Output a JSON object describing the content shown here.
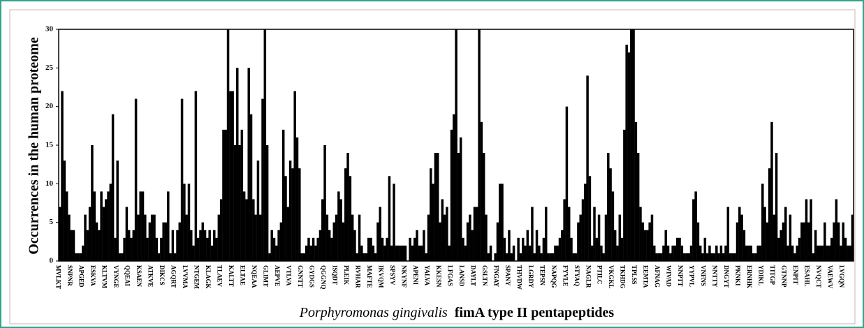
{
  "chart_data": {
    "type": "bar",
    "title": [
      "Porphyromonas gingivalis",
      "fimA type II pentapeptides"
    ],
    "y_label": "Occurrences in the human proteome",
    "color": "#000000",
    "ylim": [
      0,
      30
    ],
    "yticks": [
      0,
      5,
      10,
      15,
      20,
      25,
      30
    ],
    "categories": [
      "MVLKT",
      null,
      null,
      null,
      null,
      "SNPNR",
      null,
      null,
      null,
      null,
      "APGED",
      null,
      null,
      null,
      null,
      "ESKVA",
      null,
      null,
      null,
      null,
      "KLTVM",
      null,
      null,
      null,
      null,
      "VYNGE",
      null,
      null,
      null,
      null,
      "QQEAI",
      null,
      null,
      null,
      null,
      "KSAEN",
      null,
      null,
      null,
      null,
      "ATKVE",
      null,
      null,
      null,
      null,
      "DIKCS",
      null,
      null,
      null,
      null,
      "AGQRT",
      null,
      null,
      null,
      null,
      "LVVMA",
      null,
      null,
      null,
      null,
      "NTGEM",
      null,
      null,
      null,
      null,
      "KLAGK",
      null,
      null,
      null,
      null,
      "TLAEV",
      null,
      null,
      null,
      null,
      "KALTT",
      null,
      null,
      null,
      null,
      "ELTAE",
      null,
      null,
      null,
      null,
      "NQEAA",
      null,
      null,
      null,
      null,
      "GLIMT",
      null,
      null,
      null,
      null,
      "AEPVE",
      null,
      null,
      null,
      null,
      "VTLVA",
      null,
      null,
      null,
      null,
      "GNNTT",
      null,
      null,
      null,
      null,
      "GYDGS",
      null,
      null,
      null,
      null,
      "QGGNQ",
      null,
      null,
      null,
      null,
      "ISQDT",
      null,
      null,
      null,
      null,
      "PLEIK",
      null,
      null,
      null,
      null,
      "RVHAR",
      null,
      null,
      null,
      null,
      "MAFTE",
      null,
      null,
      null,
      null,
      "IKVQM",
      null,
      null,
      null,
      null,
      "SPSYV",
      null,
      null,
      null,
      null,
      "NKYNF",
      null,
      null,
      null,
      null,
      "APENI",
      null,
      null,
      null,
      null,
      "YALVA",
      null,
      null,
      null,
      null,
      "KKESN",
      null,
      null,
      null,
      null,
      "LFGAS",
      null,
      null,
      null,
      null,
      "LANSD",
      null,
      null,
      null,
      null,
      "DAYLT",
      null,
      null,
      null,
      null,
      "GSLTN",
      null,
      null,
      null,
      null,
      "FNGAY",
      null,
      null,
      null,
      null,
      "SPANY",
      null,
      null,
      null,
      null,
      "THVDW",
      null,
      null,
      null,
      null,
      "LGRDY",
      null,
      null,
      null,
      null,
      "TEPSN",
      null,
      null,
      null,
      null,
      "NAPQG",
      null,
      null,
      null,
      null,
      "FYVLE",
      null,
      null,
      null,
      null,
      "STYAQ",
      null,
      null,
      null,
      null,
      "NAGLR",
      null,
      null,
      null,
      null,
      "PTILC",
      null,
      null,
      null,
      null,
      "VKGKL",
      null,
      null,
      null,
      null,
      "TKHDG",
      null,
      null,
      null,
      null,
      "TPLSS",
      null,
      null,
      null,
      null,
      "EEMTA",
      null,
      null,
      null,
      null,
      "AFNAG",
      null,
      null,
      null,
      null,
      "WIVAD",
      null,
      null,
      null,
      null,
      "NNPTT",
      null,
      null,
      null,
      null,
      "YYPVL",
      null,
      null,
      null,
      null,
      "VNFNS",
      null,
      null,
      null,
      null,
      "NNTTY",
      null,
      null,
      null,
      null,
      "DNGYT",
      null,
      null,
      null,
      null,
      "PKNKI",
      null,
      null,
      null,
      null,
      "ERNHK",
      null,
      null,
      null,
      null,
      "YDIKL",
      null,
      null,
      null,
      null,
      "TITGP",
      null,
      null,
      null,
      null,
      "GTNNP",
      null,
      null,
      null,
      null,
      "ENPIT",
      null,
      null,
      null,
      null,
      "ESAHL",
      null,
      null,
      null,
      null,
      "NVQCT",
      null,
      null,
      null,
      null,
      "VAEWV",
      null,
      null,
      null,
      null,
      "LVGQN",
      null,
      null,
      null,
      null
    ],
    "values": [
      7,
      22,
      13,
      9,
      6,
      4,
      4,
      1,
      1,
      1,
      2,
      6,
      4,
      7,
      15,
      9,
      5,
      4,
      9,
      7,
      8,
      9,
      10,
      19,
      3,
      13,
      1,
      1,
      3,
      7,
      4,
      3,
      4,
      21,
      6,
      9,
      9,
      6,
      3,
      5,
      6,
      6,
      3,
      1,
      3,
      5,
      5,
      9,
      1,
      4,
      1,
      4,
      5,
      21,
      10,
      6,
      10,
      4,
      2,
      22,
      3,
      4,
      5,
      4,
      3,
      4,
      2,
      4,
      3,
      6,
      8,
      17,
      17,
      30,
      22,
      22,
      15,
      25,
      15,
      17,
      9,
      8,
      25,
      19,
      8,
      6,
      13,
      6,
      21,
      30,
      15,
      1,
      4,
      3,
      2,
      4,
      5,
      17,
      11,
      7,
      13,
      12,
      22,
      16,
      12,
      1,
      1,
      2,
      3,
      2,
      3,
      2,
      3,
      4,
      8,
      15,
      6,
      4,
      3,
      5,
      6,
      9,
      8,
      5,
      12,
      14,
      11,
      6,
      4,
      1,
      6,
      2,
      1,
      1,
      3,
      3,
      2,
      1,
      5,
      7,
      3,
      2,
      3,
      11,
      2,
      10,
      2,
      2,
      2,
      2,
      2,
      0,
      3,
      2,
      3,
      4,
      2,
      2,
      4,
      1,
      6,
      12,
      10,
      14,
      14,
      5,
      8,
      6,
      7,
      2,
      17,
      19,
      30,
      14,
      16,
      3,
      2,
      5,
      6,
      4,
      7,
      7,
      30,
      18,
      14,
      6,
      1,
      2,
      0,
      1,
      5,
      10,
      10,
      3,
      1,
      4,
      1,
      2,
      0,
      3,
      1,
      3,
      2,
      4,
      2,
      7,
      1,
      4,
      2,
      1,
      3,
      7,
      1,
      1,
      1,
      2,
      2,
      3,
      4,
      8,
      20,
      7,
      3,
      1,
      1,
      5,
      6,
      8,
      10,
      24,
      11,
      2,
      7,
      3,
      6,
      2,
      1,
      6,
      14,
      12,
      9,
      4,
      2,
      6,
      3,
      17,
      28,
      27,
      30,
      30,
      18,
      14,
      7,
      5,
      4,
      4,
      5,
      6,
      2,
      1,
      1,
      1,
      2,
      4,
      2,
      1,
      2,
      2,
      3,
      3,
      2,
      1,
      1,
      1,
      2,
      8,
      9,
      5,
      2,
      1,
      3,
      1,
      2,
      1,
      1,
      2,
      1,
      2,
      1,
      2,
      7,
      1,
      1,
      1,
      5,
      7,
      6,
      4,
      2,
      2,
      2,
      1,
      1,
      2,
      2,
      10,
      7,
      5,
      12,
      18,
      6,
      14,
      3,
      4,
      5,
      7,
      2,
      6,
      2,
      1,
      2,
      3,
      5,
      5,
      8,
      5,
      8,
      1,
      4,
      2,
      2,
      2,
      5,
      2,
      2,
      3,
      5,
      8,
      5,
      2,
      5,
      3,
      2,
      2,
      6
    ]
  }
}
